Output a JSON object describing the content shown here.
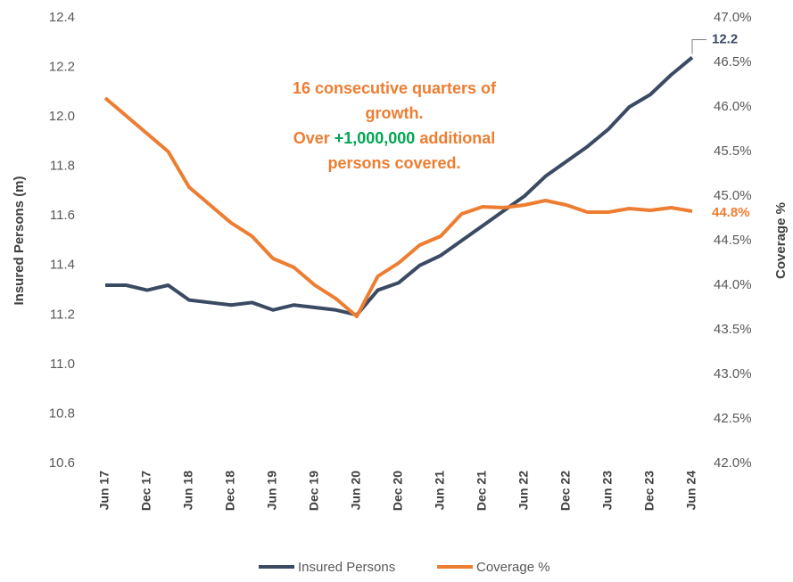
{
  "chart_data": {
    "type": "line",
    "categories": [
      "Jun 17",
      null,
      "Dec 17",
      null,
      "Jun 18",
      null,
      "Dec 18",
      null,
      "Jun 19",
      null,
      "Dec 19",
      null,
      "Jun 20",
      null,
      "Dec 20",
      null,
      "Jun 21",
      null,
      "Dec 21",
      null,
      "Jun 22",
      null,
      "Dec 22",
      null,
      "Jun 23",
      null,
      "Dec 23",
      null,
      "Jun 24"
    ],
    "series": [
      {
        "name": "Insured Persons",
        "color": "#3b4a63",
        "values": [
          11.32,
          11.32,
          11.3,
          11.32,
          11.26,
          11.25,
          11.24,
          11.25,
          11.22,
          11.24,
          11.23,
          11.22,
          11.2,
          11.3,
          11.33,
          11.4,
          11.44,
          11.5,
          11.56,
          11.62,
          11.68,
          11.76,
          11.82,
          11.88,
          11.95,
          12.04,
          12.09,
          12.17,
          12.24
        ],
        "value_labels": [
          null,
          null,
          null,
          null,
          null,
          null,
          null,
          null,
          null,
          null,
          null,
          null,
          null,
          null,
          null,
          null,
          null,
          null,
          null,
          null,
          null,
          null,
          null,
          null,
          null,
          null,
          null,
          null,
          "12.2"
        ]
      },
      {
        "name": "Coverage %",
        "color": "#ed7d31",
        "axis": "y2",
        "values": [
          46.1,
          45.9,
          45.7,
          45.5,
          45.1,
          44.9,
          44.7,
          44.55,
          44.3,
          44.2,
          44.0,
          43.85,
          43.65,
          44.1,
          44.25,
          44.45,
          44.55,
          44.8,
          44.88,
          44.87,
          44.9,
          44.95,
          44.9,
          44.82,
          44.82,
          44.86,
          44.84,
          44.87,
          44.83
        ],
        "value_labels": [
          null,
          null,
          null,
          null,
          null,
          null,
          null,
          null,
          null,
          null,
          null,
          null,
          null,
          null,
          null,
          null,
          null,
          null,
          null,
          null,
          null,
          null,
          null,
          null,
          null,
          null,
          null,
          null,
          "44.8%"
        ]
      }
    ],
    "ylabel": "Insured Persons (m)",
    "y2label": "Coverage %",
    "ylim": [
      10.6,
      12.4
    ],
    "yticks": [
      10.6,
      10.8,
      {
        "value": 11,
        "label": "11.0"
      },
      11.2,
      11.4,
      11.6,
      11.8,
      {
        "value": 12,
        "label": "12.0"
      },
      12.2,
      12.4
    ],
    "y2lim": [
      42,
      47
    ],
    "y2ticks": [
      {
        "value": 42,
        "label": "42.0%"
      },
      {
        "value": 42.5,
        "label": "42.5%"
      },
      {
        "value": 43,
        "label": "43.0%"
      },
      {
        "value": 43.5,
        "label": "43.5%"
      },
      {
        "value": 44,
        "label": "44.0%"
      },
      {
        "value": 44.5,
        "label": "44.5%"
      },
      {
        "value": 45,
        "label": "45.0%"
      },
      {
        "value": 45.5,
        "label": "45.5%"
      },
      {
        "value": 46,
        "label": "46.0%"
      },
      {
        "value": 46.5,
        "label": "46.5%"
      },
      {
        "value": 47,
        "label": "47.0%"
      }
    ],
    "grid": false,
    "legend": "bottom",
    "annotation": [
      [
        {
          "text": "16 consecutive quarters of",
          "color": "#ed7d31"
        }
      ],
      [
        {
          "text": "growth.",
          "color": "#ed7d31"
        }
      ],
      [
        {
          "text": "Over ",
          "color": "#ed7d31"
        },
        {
          "text": "+1,000,000",
          "color": "#00a651"
        },
        {
          "text": " additional",
          "color": "#ed7d31"
        }
      ],
      [
        {
          "text": "persons covered.",
          "color": "#ed7d31"
        }
      ]
    ]
  }
}
